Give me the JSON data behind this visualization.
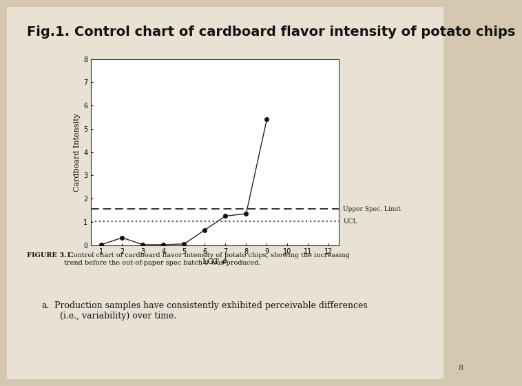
{
  "title": "Fig.1. Control chart of cardboard flavor intensity of potato chips",
  "title_fontsize": 14,
  "title_color": "#111111",
  "background_color": "#d4c9b0",
  "white_card_color": "#e8e2d5",
  "plot_bg_color": "#ffffff",
  "lot_x": [
    1,
    2,
    3,
    4,
    5,
    6,
    7,
    8,
    9
  ],
  "lot_y": [
    0.02,
    0.32,
    0.02,
    0.02,
    0.05,
    0.65,
    1.25,
    1.35,
    5.4
  ],
  "upper_spec_limit": 1.55,
  "ucl": 1.02,
  "xlabel": "LOT #",
  "ylabel": "Cardboard Intensity",
  "xlim": [
    0.5,
    12.5
  ],
  "ylim": [
    0,
    8
  ],
  "yticks": [
    0,
    1,
    2,
    3,
    4,
    5,
    6,
    7,
    8
  ],
  "xticks": [
    1,
    2,
    3,
    4,
    5,
    6,
    7,
    8,
    9,
    10,
    11,
    12
  ],
  "line_color": "#222222",
  "marker_color": "#111111",
  "usl_label": "Upper Spec. Limit",
  "ucl_label": "UCL",
  "figure_caption_bold": "FIGURE 3.1.",
  "figure_caption_normal": "  Control chart of cardboard flavor intensity of potato chips, showing the increasing\ntrend before the out-of-paper spec batch 9 was produced.",
  "bullet_text_label": "a.",
  "bullet_text_body": " Production samples have consistently exhibited perceivable differences\n   (i.e., variability) over time.",
  "page_number": "8"
}
